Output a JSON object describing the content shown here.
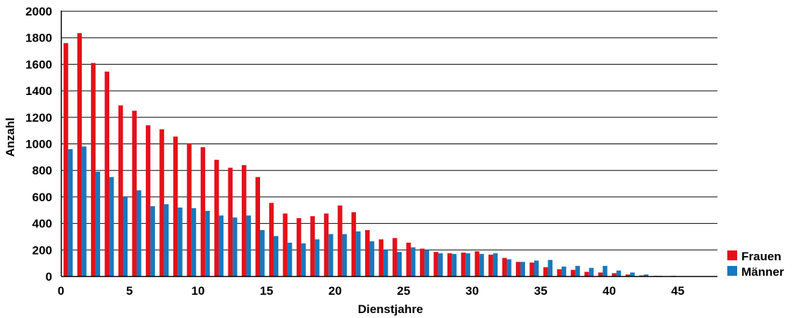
{
  "chart_data": {
    "type": "bar",
    "xlabel": "Dienstjahre",
    "ylabel": "Anzahl",
    "ylim": [
      0,
      2000
    ],
    "yticks": [
      0,
      200,
      400,
      600,
      800,
      1000,
      1200,
      1400,
      1600,
      1800,
      2000
    ],
    "xticks": [
      0,
      5,
      10,
      15,
      20,
      25,
      30,
      35,
      40,
      45
    ],
    "xlim": [
      0,
      48
    ],
    "grid": true,
    "legend_position": "bottom-right",
    "x": [
      0,
      1,
      2,
      3,
      4,
      5,
      6,
      7,
      8,
      9,
      10,
      11,
      12,
      13,
      14,
      15,
      16,
      17,
      18,
      19,
      20,
      21,
      22,
      23,
      24,
      25,
      26,
      27,
      28,
      29,
      30,
      31,
      32,
      33,
      34,
      35,
      36,
      37,
      38,
      39,
      40,
      41,
      42,
      43,
      44,
      45,
      46
    ],
    "series": [
      {
        "name": "Frauen",
        "color": "#e3111b",
        "values": [
          1760,
          1835,
          1610,
          1545,
          1290,
          1250,
          1140,
          1110,
          1055,
          1005,
          975,
          880,
          820,
          840,
          750,
          555,
          475,
          440,
          455,
          475,
          535,
          485,
          350,
          280,
          290,
          255,
          210,
          185,
          175,
          180,
          190,
          165,
          140,
          110,
          105,
          70,
          55,
          50,
          35,
          30,
          25,
          15,
          8,
          5,
          2,
          2,
          1
        ]
      },
      {
        "name": "Männer",
        "color": "#1878bd",
        "values": [
          960,
          980,
          790,
          750,
          600,
          650,
          530,
          545,
          520,
          515,
          495,
          460,
          445,
          460,
          350,
          305,
          255,
          250,
          280,
          320,
          320,
          340,
          265,
          200,
          185,
          220,
          200,
          175,
          170,
          175,
          170,
          175,
          130,
          110,
          120,
          125,
          75,
          80,
          65,
          80,
          45,
          30,
          15,
          5,
          5,
          2,
          1
        ]
      }
    ]
  }
}
